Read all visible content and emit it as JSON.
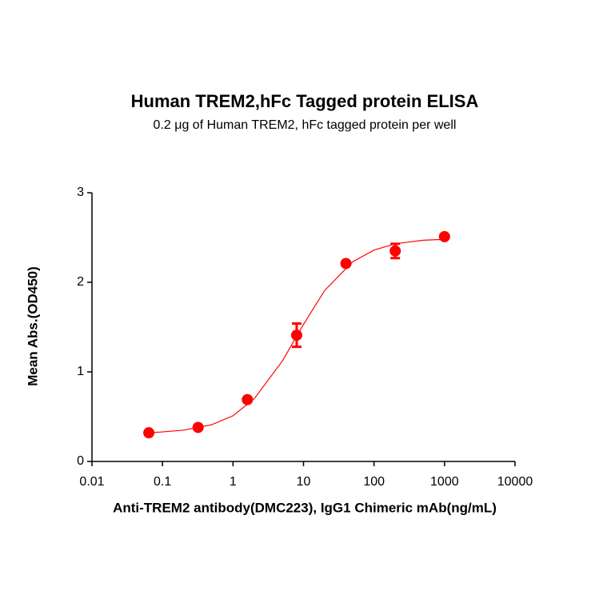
{
  "chart_data": {
    "type": "scatter",
    "title": "Human TREM2,hFc Tagged protein ELISA",
    "subtitle": "0.2 μg of Human TREM2, hFc tagged protein per well",
    "x_label": "Anti-TREM2 antibody(DMC223), IgG1 Chimeric mAb(ng/mL)",
    "y_label": "Mean Abs.(OD450)",
    "x_scale": "log",
    "xlim": [
      0.01,
      10000
    ],
    "xticks": [
      0.01,
      0.1,
      1,
      10,
      100,
      1000,
      10000
    ],
    "ylim": [
      0,
      3
    ],
    "yticks": [
      0,
      1,
      2,
      3
    ],
    "color": "#ff0000",
    "x": [
      0.064,
      0.32,
      1.6,
      8,
      40,
      200,
      1000
    ],
    "values": [
      0.32,
      0.38,
      0.69,
      1.41,
      2.21,
      2.35,
      2.51
    ],
    "errors": [
      0.02,
      0.02,
      0.02,
      0.13,
      0.02,
      0.08,
      0.02
    ],
    "fit": {
      "x": [
        0.064,
        0.1,
        0.2,
        0.5,
        1,
        2,
        5,
        10,
        20,
        50,
        100,
        200,
        500,
        1000
      ],
      "values": [
        0.32,
        0.33,
        0.35,
        0.41,
        0.51,
        0.7,
        1.12,
        1.53,
        1.91,
        2.23,
        2.36,
        2.43,
        2.47,
        2.48
      ]
    }
  }
}
